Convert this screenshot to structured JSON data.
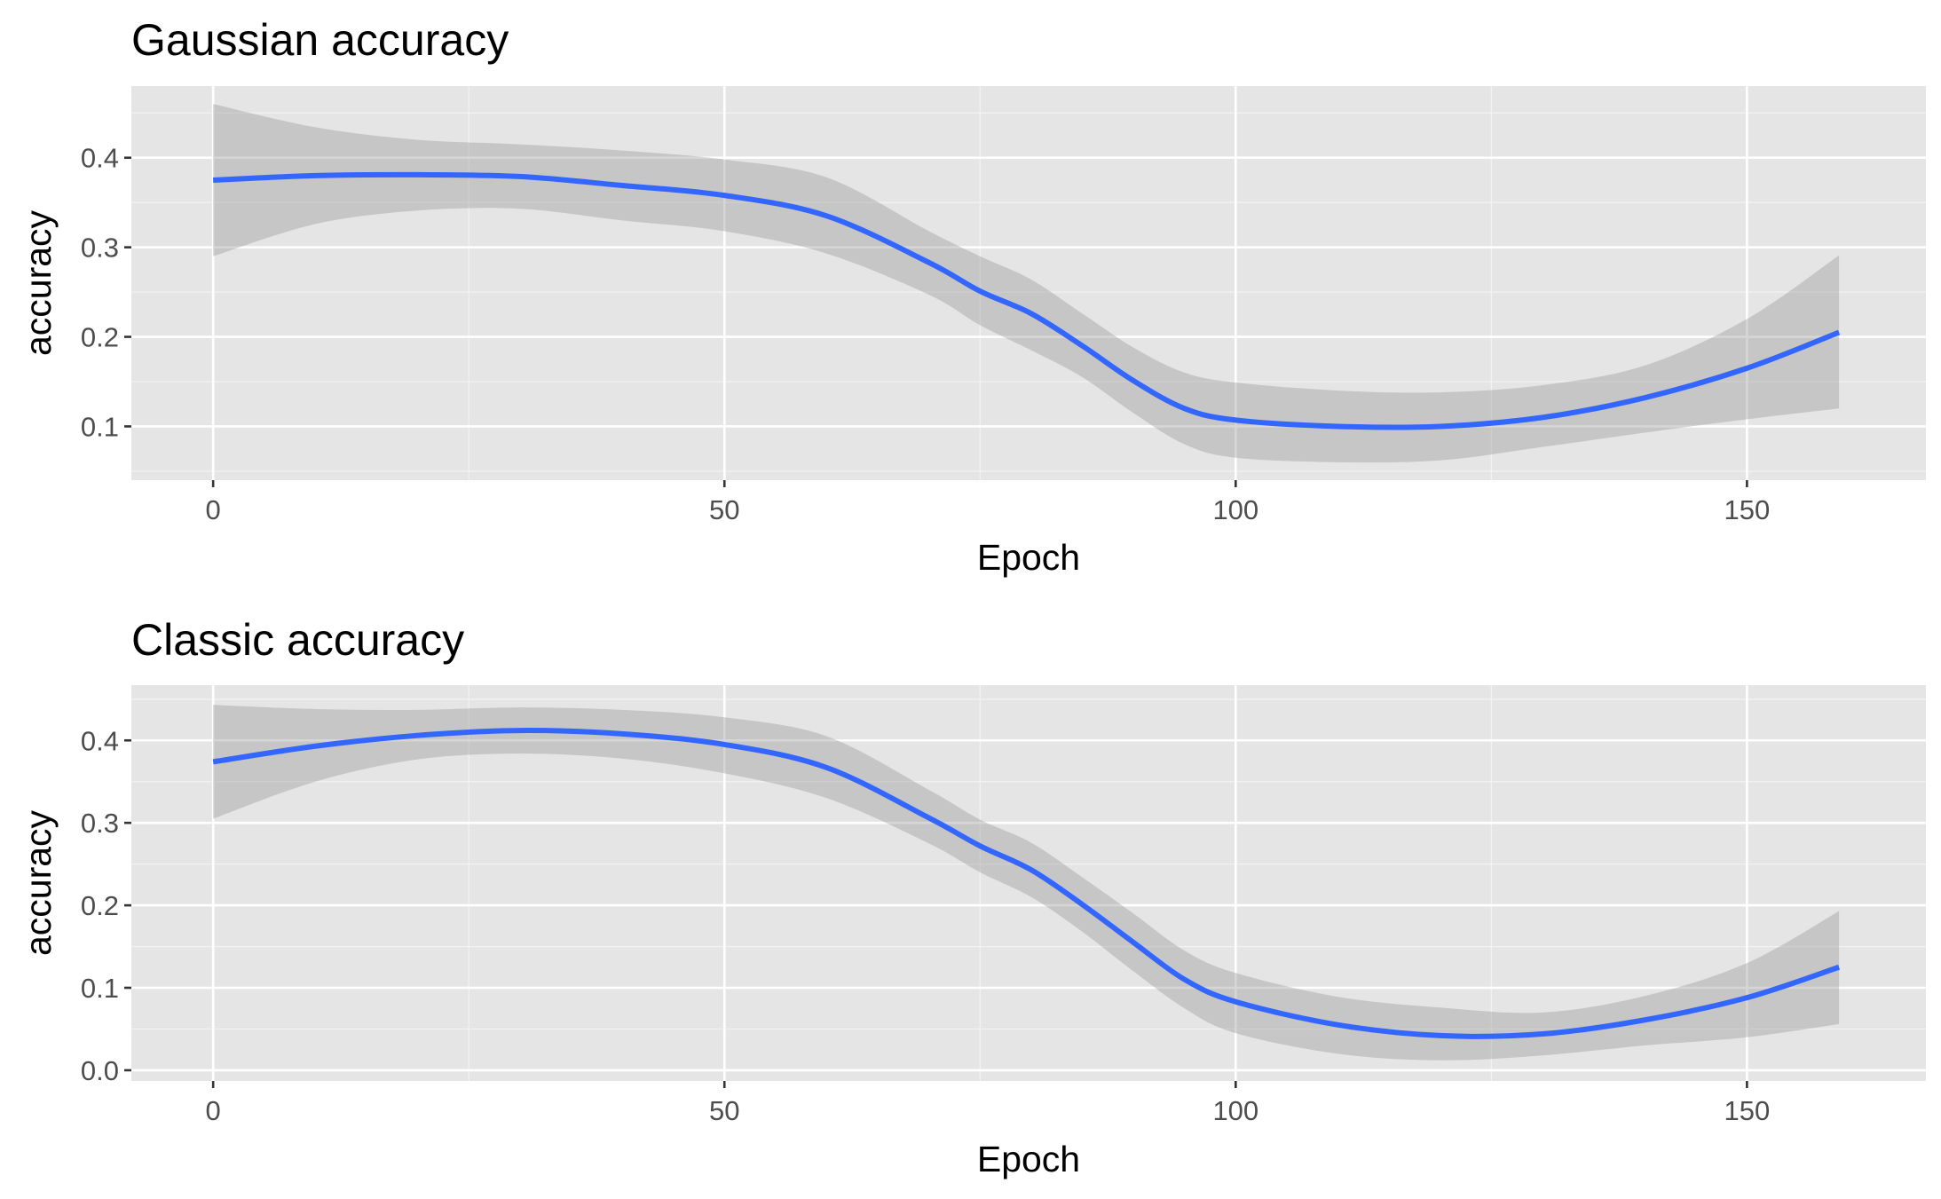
{
  "chart_data": [
    {
      "type": "line",
      "title": "Gaussian accuracy",
      "xlabel": "Epoch",
      "ylabel": "accuracy",
      "xlim": [
        -8,
        167.5
      ],
      "ylim": [
        0.04,
        0.48
      ],
      "x_ticks": [
        0,
        50,
        100,
        150
      ],
      "x_tick_labels": [
        "0",
        "50",
        "100",
        "150"
      ],
      "y_ticks": [
        0.1,
        0.2,
        0.3,
        0.4
      ],
      "y_tick_labels": [
        "0.1",
        "0.2",
        "0.3",
        "0.4"
      ],
      "grid": true,
      "series": [
        {
          "name": "smooth",
          "color": "#3366ff",
          "x": [
            0,
            10,
            20,
            30,
            40,
            50,
            60,
            70,
            75,
            80,
            85,
            90,
            95,
            100,
            110,
            120,
            130,
            140,
            150,
            159
          ],
          "y": [
            0.375,
            0.38,
            0.381,
            0.379,
            0.369,
            0.358,
            0.335,
            0.283,
            0.251,
            0.226,
            0.19,
            0.151,
            0.12,
            0.107,
            0.1,
            0.1,
            0.11,
            0.132,
            0.165,
            0.205
          ],
          "lower": [
            0.29,
            0.326,
            0.341,
            0.343,
            0.33,
            0.318,
            0.293,
            0.247,
            0.213,
            0.185,
            0.155,
            0.115,
            0.08,
            0.065,
            0.06,
            0.062,
            0.077,
            0.093,
            0.108,
            0.12
          ],
          "upper": [
            0.46,
            0.434,
            0.42,
            0.415,
            0.408,
            0.398,
            0.378,
            0.318,
            0.29,
            0.264,
            0.226,
            0.188,
            0.16,
            0.149,
            0.14,
            0.138,
            0.146,
            0.168,
            0.22,
            0.291
          ]
        }
      ]
    },
    {
      "type": "line",
      "title": "Classic accuracy",
      "xlabel": "Epoch",
      "ylabel": "accuracy",
      "xlim": [
        -8,
        167.5
      ],
      "ylim": [
        -0.013,
        0.467
      ],
      "x_ticks": [
        0,
        50,
        100,
        150
      ],
      "x_tick_labels": [
        "0",
        "50",
        "100",
        "150"
      ],
      "y_ticks": [
        0.0,
        0.1,
        0.2,
        0.3,
        0.4
      ],
      "y_tick_labels": [
        "0.0",
        "0.1",
        "0.2",
        "0.3",
        "0.4"
      ],
      "grid": true,
      "series": [
        {
          "name": "smooth",
          "color": "#3366ff",
          "x": [
            0,
            10,
            20,
            30,
            40,
            50,
            60,
            70,
            75,
            80,
            85,
            90,
            95,
            100,
            110,
            120,
            130,
            140,
            150,
            159
          ],
          "y": [
            0.374,
            0.393,
            0.406,
            0.412,
            0.408,
            0.395,
            0.367,
            0.306,
            0.272,
            0.243,
            0.201,
            0.155,
            0.11,
            0.083,
            0.055,
            0.042,
            0.044,
            0.061,
            0.088,
            0.125
          ],
          "lower": [
            0.305,
            0.35,
            0.377,
            0.384,
            0.378,
            0.36,
            0.33,
            0.275,
            0.24,
            0.21,
            0.168,
            0.12,
            0.075,
            0.045,
            0.02,
            0.012,
            0.018,
            0.03,
            0.04,
            0.056
          ],
          "upper": [
            0.443,
            0.438,
            0.437,
            0.44,
            0.437,
            0.428,
            0.405,
            0.34,
            0.304,
            0.276,
            0.234,
            0.19,
            0.145,
            0.118,
            0.089,
            0.076,
            0.07,
            0.09,
            0.13,
            0.193
          ]
        }
      ]
    }
  ]
}
